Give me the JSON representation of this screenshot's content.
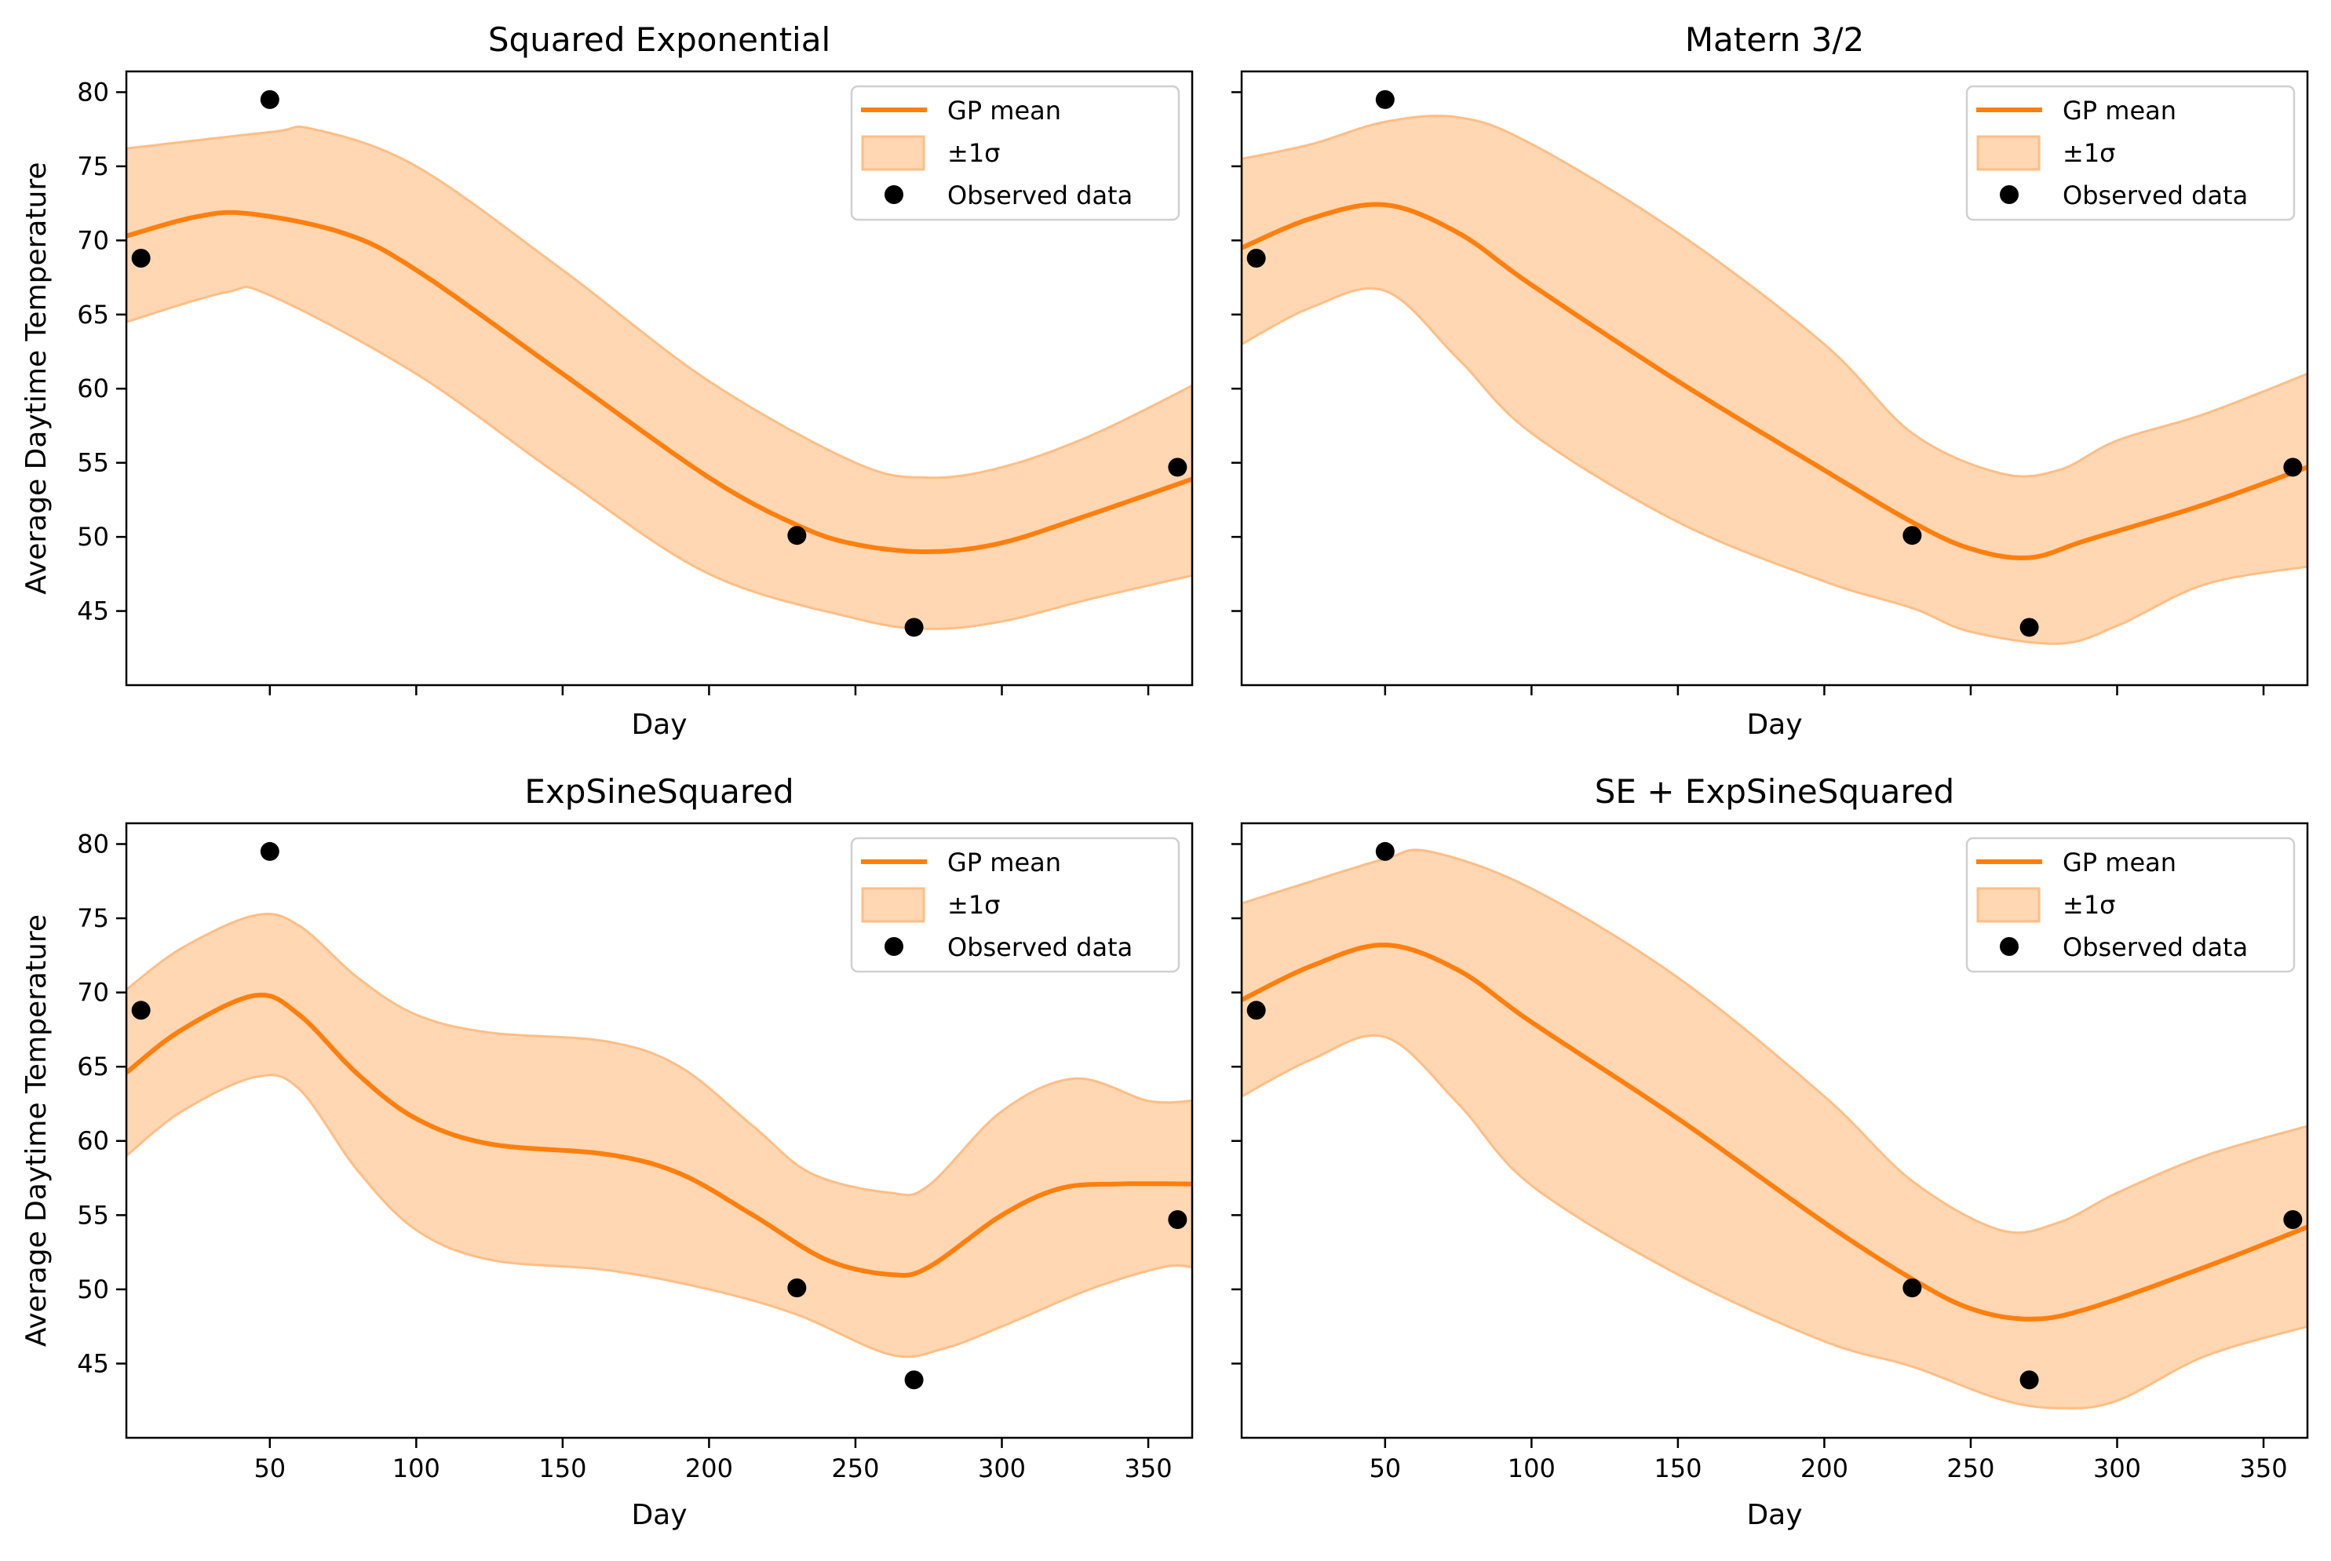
{
  "colors": {
    "mean": "#ff7f0e",
    "band_fill": "#ffd7b3",
    "band_edge": "#ffbe85",
    "points": "#000000"
  },
  "legend_labels": {
    "mean": "GP mean",
    "band": "±1σ",
    "points": "Observed data"
  },
  "chart_data": [
    {
      "type": "line",
      "title": "Squared Exponential",
      "xlabel": "Day",
      "ylabel": "Average Daytime Temperature",
      "xlim": [
        1,
        365
      ],
      "ylim": [
        40,
        81.4
      ],
      "xticks": [
        50,
        100,
        150,
        200,
        250,
        300,
        350
      ],
      "show_xtick_labels": false,
      "yticks": [
        45,
        50,
        55,
        60,
        65,
        70,
        75,
        80
      ],
      "show_ytick_labels": true,
      "grid": false,
      "legend": "top-right",
      "observed": {
        "x": [
          6,
          50,
          230,
          270,
          360
        ],
        "y": [
          68.8,
          79.5,
          50.1,
          43.9,
          54.7
        ]
      },
      "mean": {
        "x": [
          1,
          25,
          43,
          75,
          100,
          150,
          200,
          230,
          250,
          275,
          300,
          330,
          365
        ],
        "y": [
          70.3,
          71.6,
          71.8,
          70.5,
          68,
          61,
          54,
          50.8,
          49.5,
          49,
          49.6,
          51.5,
          53.9
        ]
      },
      "upper": {
        "x": [
          1,
          50,
          65,
          100,
          150,
          200,
          250,
          275,
          300,
          330,
          365
        ],
        "y": [
          76.2,
          77.3,
          77.5,
          75,
          68,
          60.5,
          55,
          54,
          54.7,
          56.8,
          60.2
        ]
      },
      "lower": {
        "x": [
          1,
          35,
          50,
          100,
          150,
          200,
          250,
          275,
          300,
          330,
          365
        ],
        "y": [
          64.5,
          66.5,
          66.3,
          61,
          54,
          47.5,
          44.5,
          43.8,
          44.3,
          45.8,
          47.4
        ]
      }
    },
    {
      "type": "line",
      "title": "Matern 3/2",
      "xlabel": "Day",
      "ylabel": "",
      "xlim": [
        1,
        365
      ],
      "ylim": [
        40,
        81.4
      ],
      "xticks": [
        50,
        100,
        150,
        200,
        250,
        300,
        350
      ],
      "show_xtick_labels": false,
      "yticks": [
        45,
        50,
        55,
        60,
        65,
        70,
        75,
        80
      ],
      "show_ytick_labels": false,
      "grid": false,
      "legend": "top-right",
      "observed": {
        "x": [
          6,
          50,
          230,
          270,
          360
        ],
        "y": [
          68.8,
          79.5,
          50.1,
          43.9,
          54.7
        ]
      },
      "mean": {
        "x": [
          1,
          25,
          50,
          75,
          100,
          150,
          200,
          230,
          250,
          270,
          290,
          330,
          365
        ],
        "y": [
          69.5,
          71.5,
          72.4,
          70.5,
          67,
          60.5,
          54.5,
          51,
          49.2,
          48.6,
          49.8,
          52.2,
          54.7
        ]
      },
      "upper": {
        "x": [
          1,
          25,
          50,
          75,
          100,
          150,
          200,
          230,
          260,
          280,
          300,
          330,
          365
        ],
        "y": [
          75.5,
          76.5,
          78,
          78.3,
          76.5,
          70.5,
          63,
          57,
          54.3,
          54.5,
          56.5,
          58.3,
          61
        ]
      },
      "lower": {
        "x": [
          1,
          25,
          50,
          75,
          100,
          150,
          200,
          230,
          250,
          280,
          300,
          330,
          365
        ],
        "y": [
          63,
          65.5,
          66.6,
          62,
          57,
          51,
          47,
          45.2,
          43.6,
          42.8,
          44,
          46.8,
          48
        ]
      }
    },
    {
      "type": "line",
      "title": "ExpSineSquared",
      "xlabel": "Day",
      "ylabel": "Average Daytime Temperature",
      "xlim": [
        1,
        365
      ],
      "ylim": [
        40,
        81.4
      ],
      "xticks": [
        50,
        100,
        150,
        200,
        250,
        300,
        350
      ],
      "show_xtick_labels": true,
      "yticks": [
        45,
        50,
        55,
        60,
        65,
        70,
        75,
        80
      ],
      "show_ytick_labels": true,
      "grid": false,
      "legend": "top-right",
      "observed": {
        "x": [
          6,
          50,
          230,
          270,
          360
        ],
        "y": [
          68.8,
          79.5,
          50.1,
          43.9,
          54.7
        ]
      },
      "mean": {
        "x": [
          1,
          20,
          45,
          60,
          80,
          100,
          125,
          165,
          190,
          215,
          240,
          262,
          275,
          300,
          320,
          340,
          365
        ],
        "y": [
          64.6,
          67.5,
          69.8,
          68.5,
          64.5,
          61.5,
          59.8,
          59.1,
          57.8,
          55,
          52,
          51,
          51.5,
          55,
          56.8,
          57.1,
          57.1
        ]
      },
      "upper": {
        "x": [
          1,
          20,
          45,
          60,
          80,
          100,
          125,
          165,
          190,
          215,
          235,
          262,
          275,
          300,
          325,
          350,
          365
        ],
        "y": [
          70.2,
          73,
          75.2,
          74.5,
          71,
          68.5,
          67.3,
          66.7,
          65,
          61,
          57.8,
          56.5,
          57,
          62,
          64.2,
          62.7,
          62.7
        ]
      },
      "lower": {
        "x": [
          1,
          20,
          45,
          60,
          80,
          100,
          125,
          165,
          200,
          230,
          262,
          280,
          300,
          330,
          355,
          365
        ],
        "y": [
          59,
          62,
          64.3,
          63.5,
          58,
          54,
          52,
          51.3,
          50,
          48.3,
          45.6,
          46,
          47.5,
          50,
          51.5,
          51.5
        ]
      }
    },
    {
      "type": "line",
      "title": "SE + ExpSineSquared",
      "xlabel": "Day",
      "ylabel": "",
      "xlim": [
        1,
        365
      ],
      "ylim": [
        40,
        81.4
      ],
      "xticks": [
        50,
        100,
        150,
        200,
        250,
        300,
        350
      ],
      "show_xtick_labels": true,
      "yticks": [
        45,
        50,
        55,
        60,
        65,
        70,
        75,
        80
      ],
      "show_ytick_labels": false,
      "grid": false,
      "legend": "top-right",
      "observed": {
        "x": [
          6,
          50,
          230,
          270,
          360
        ],
        "y": [
          68.8,
          79.5,
          50.1,
          43.9,
          54.7
        ]
      },
      "mean": {
        "x": [
          1,
          25,
          50,
          75,
          100,
          150,
          200,
          230,
          250,
          270,
          290,
          330,
          365
        ],
        "y": [
          69.5,
          71.8,
          73.2,
          71.5,
          68,
          61.5,
          54.5,
          50.7,
          48.7,
          48,
          48.7,
          51.5,
          54.2
        ]
      },
      "upper": {
        "x": [
          1,
          25,
          50,
          65,
          100,
          150,
          200,
          230,
          260,
          280,
          300,
          330,
          365
        ],
        "y": [
          76,
          77.5,
          79,
          79.5,
          77,
          71,
          63,
          57.3,
          54,
          54.5,
          56.5,
          59,
          61
        ]
      },
      "lower": {
        "x": [
          1,
          25,
          50,
          75,
          100,
          150,
          200,
          230,
          260,
          280,
          300,
          330,
          365
        ],
        "y": [
          63,
          65.5,
          67,
          62.5,
          57,
          51,
          46.5,
          44.8,
          42.6,
          42,
          42.5,
          45.5,
          47.5
        ]
      }
    }
  ]
}
